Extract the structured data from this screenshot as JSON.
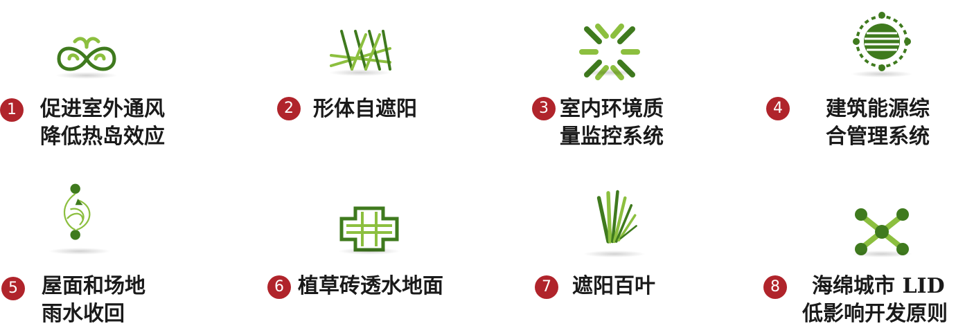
{
  "colors": {
    "accent_red": "#b0242b",
    "green_dark": "#3f7a1e",
    "green_light": "#8cbf3f",
    "text": "#1a1a1a"
  },
  "items": [
    {
      "num": "1",
      "line1": "促进室外通风",
      "line2": "降低热岛效应",
      "icon": "ventilation-icon"
    },
    {
      "num": "2",
      "line1": "形体自遮阳",
      "line2": "",
      "icon": "self-shading-icon"
    },
    {
      "num": "3",
      "line1": "室内环境质",
      "line2": "量监控系统",
      "icon": "indoor-environment-icon"
    },
    {
      "num": "4",
      "line1": "建筑能源综",
      "line2": "合管理系统",
      "icon": "energy-management-icon"
    },
    {
      "num": "5",
      "line1": "屋面和场地",
      "line2": "雨水收回",
      "icon": "rainwater-icon"
    },
    {
      "num": "6",
      "line1": "植草砖透水地面",
      "line2": "",
      "icon": "permeable-paving-icon"
    },
    {
      "num": "7",
      "line1": "遮阳百叶",
      "line2": "",
      "icon": "louver-icon"
    },
    {
      "num": "8",
      "line1": "海绵城市 LID",
      "line2": "低影响开发原则",
      "icon": "sponge-city-icon"
    }
  ]
}
